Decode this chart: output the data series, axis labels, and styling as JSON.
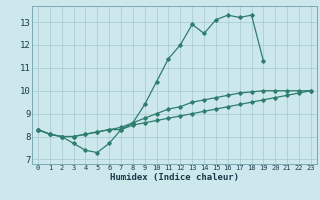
{
  "xlabel": "Humidex (Indice chaleur)",
  "x_values": [
    0,
    1,
    2,
    3,
    4,
    5,
    6,
    7,
    8,
    9,
    10,
    11,
    12,
    13,
    14,
    15,
    16,
    17,
    18,
    19,
    20,
    21,
    22,
    23
  ],
  "line_max": [
    8.3,
    8.1,
    8.0,
    7.7,
    7.4,
    7.3,
    7.7,
    8.3,
    8.6,
    9.4,
    10.4,
    11.4,
    12.0,
    12.9,
    12.5,
    13.1,
    13.3,
    13.2,
    13.3,
    11.3,
    null,
    null,
    null,
    null
  ],
  "line_mean": [
    8.3,
    8.1,
    8.0,
    8.0,
    8.1,
    8.2,
    8.3,
    8.4,
    8.6,
    8.8,
    9.0,
    9.2,
    9.3,
    9.5,
    9.6,
    9.7,
    9.8,
    9.9,
    9.95,
    10.0,
    10.0,
    10.0,
    10.0,
    10.0
  ],
  "line_min": [
    8.3,
    8.1,
    8.0,
    8.0,
    8.1,
    8.2,
    8.3,
    8.3,
    8.5,
    8.6,
    8.7,
    8.8,
    8.9,
    9.0,
    9.1,
    9.2,
    9.3,
    9.4,
    9.5,
    9.6,
    9.7,
    9.8,
    9.9,
    10.0
  ],
  "line_color": "#2e7d6e",
  "bg_color": "#cde8ec",
  "grid_color": "#aacdd4",
  "ylim": [
    6.8,
    13.7
  ],
  "xlim": [
    -0.5,
    23.5
  ],
  "yticks": [
    7,
    8,
    9,
    10,
    11,
    12,
    13
  ],
  "xticks": [
    0,
    1,
    2,
    3,
    4,
    5,
    6,
    7,
    8,
    9,
    10,
    11,
    12,
    13,
    14,
    15,
    16,
    17,
    18,
    19,
    20,
    21,
    22,
    23
  ]
}
